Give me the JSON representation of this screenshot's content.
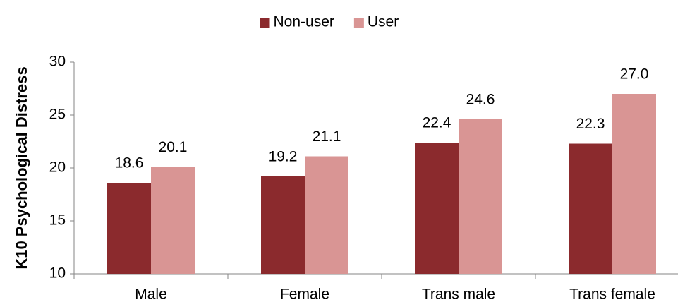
{
  "chart_data": {
    "type": "bar",
    "y_label": "K10 Psychological Distress",
    "categories": [
      "Male",
      "Female",
      "Trans male",
      "Trans female"
    ],
    "series": [
      {
        "name": "Non-user",
        "color": "#8b2a2d",
        "values": [
          18.6,
          19.2,
          22.4,
          22.3
        ],
        "value_labels": [
          "18.6",
          "19.2",
          "22.4",
          "22.3"
        ]
      },
      {
        "name": "User",
        "color": "#d99594",
        "values": [
          20.1,
          21.1,
          24.6,
          27.0
        ],
        "value_labels": [
          "20.1",
          "21.1",
          "24.6",
          "27.0"
        ]
      }
    ],
    "ylim": [
      10,
      30
    ],
    "yticks": [
      10,
      15,
      20,
      25,
      30
    ],
    "grid": false,
    "legend": "top"
  }
}
